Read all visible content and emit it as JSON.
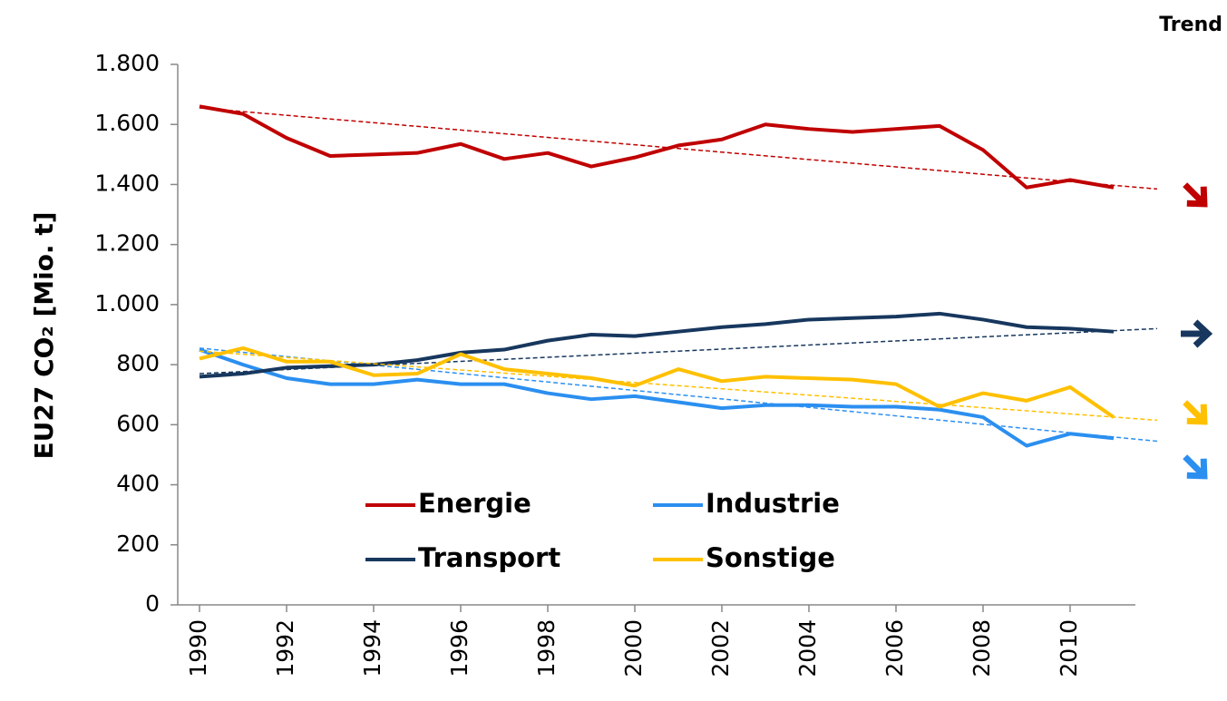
{
  "chart_data": {
    "type": "line",
    "y_label": "EU27 CO₂ [Mio. t]",
    "trend_label": "Trend",
    "x": [
      1990,
      1991,
      1992,
      1993,
      1994,
      1995,
      1996,
      1997,
      1998,
      1999,
      2000,
      2001,
      2002,
      2003,
      2004,
      2005,
      2006,
      2007,
      2008,
      2009,
      2010,
      2011
    ],
    "xlim": [
      1989.5,
      2011.5
    ],
    "xticks": [
      1990,
      1992,
      1994,
      1996,
      1998,
      2000,
      2002,
      2004,
      2006,
      2008,
      2010
    ],
    "ylim": [
      0,
      1800
    ],
    "yticks": [
      0,
      200,
      400,
      600,
      800,
      {
        "value": 1000,
        "label": "1.000"
      },
      {
        "value": 1200,
        "label": "1.200"
      },
      {
        "value": 1400,
        "label": "1.400"
      },
      {
        "value": 1600,
        "label": "1.600"
      },
      {
        "value": 1800,
        "label": "1.800"
      }
    ],
    "trend_x": [
      1990,
      2012
    ],
    "series": [
      {
        "name": "Energie",
        "color": "#c00000",
        "trend_arrow": "down-right",
        "trend": [
          1655,
          1385
        ],
        "values": [
          1660,
          1635,
          1555,
          1495,
          1500,
          1505,
          1535,
          1485,
          1505,
          1460,
          1490,
          1530,
          1550,
          1600,
          1585,
          1575,
          1585,
          1595,
          1515,
          1390,
          1415,
          1390
        ]
      },
      {
        "name": "Industrie",
        "color": "#2b8ff0",
        "trend_arrow": "down-right",
        "trend": [
          855,
          545
        ],
        "values": [
          850,
          800,
          755,
          735,
          735,
          750,
          735,
          735,
          705,
          685,
          695,
          675,
          655,
          665,
          665,
          660,
          660,
          650,
          625,
          530,
          570,
          555
        ]
      },
      {
        "name": "Transport",
        "color": "#17375e",
        "trend_arrow": "right",
        "trend": [
          770,
          920
        ],
        "values": [
          760,
          770,
          790,
          795,
          800,
          815,
          840,
          850,
          880,
          900,
          895,
          910,
          925,
          935,
          950,
          955,
          960,
          970,
          950,
          925,
          920,
          910
        ]
      },
      {
        "name": "Sonstige",
        "color": "#ffc000",
        "trend_arrow": "down-right",
        "trend": [
          845,
          615
        ],
        "values": [
          820,
          855,
          810,
          810,
          765,
          770,
          835,
          785,
          770,
          755,
          730,
          785,
          745,
          760,
          755,
          750,
          735,
          660,
          705,
          680,
          725,
          625
        ]
      }
    ]
  }
}
